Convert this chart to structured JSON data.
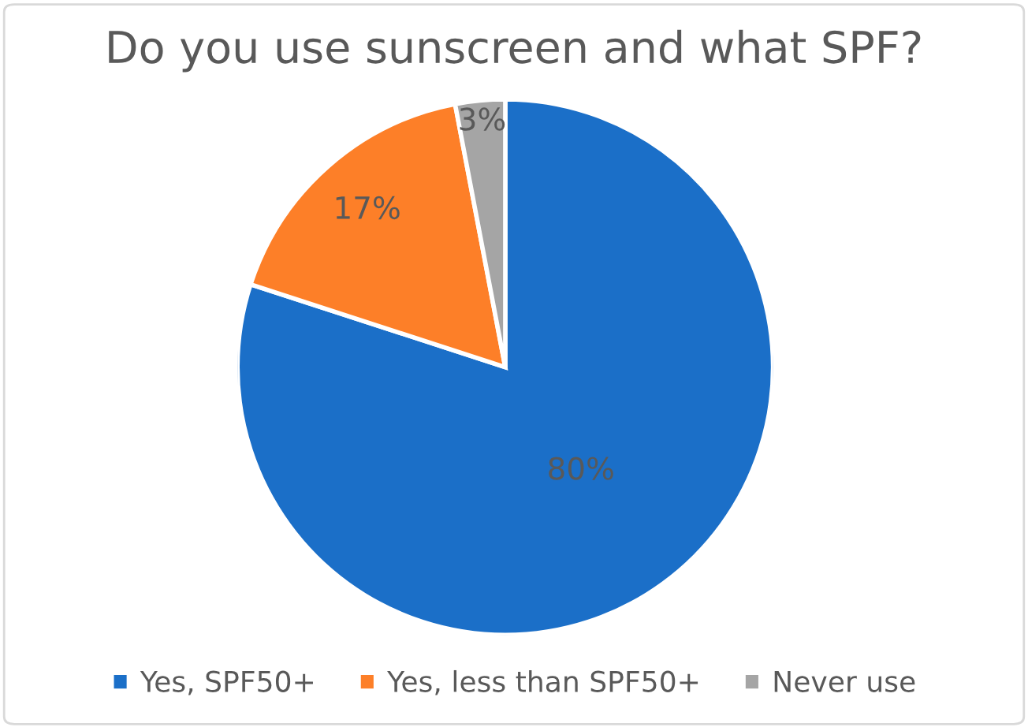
{
  "chart_data": {
    "type": "pie",
    "title": "Do you use sunscreen and what SPF?",
    "categories": [
      "Yes, SPF50+",
      "Yes, less than SPF50+",
      "Never use"
    ],
    "values": [
      80,
      17,
      3
    ],
    "colors": [
      "#1b6fc8",
      "#fd7f28",
      "#a5a5a5"
    ],
    "value_labels": [
      "80%",
      "17%",
      "3%"
    ],
    "legend": "bottom"
  }
}
